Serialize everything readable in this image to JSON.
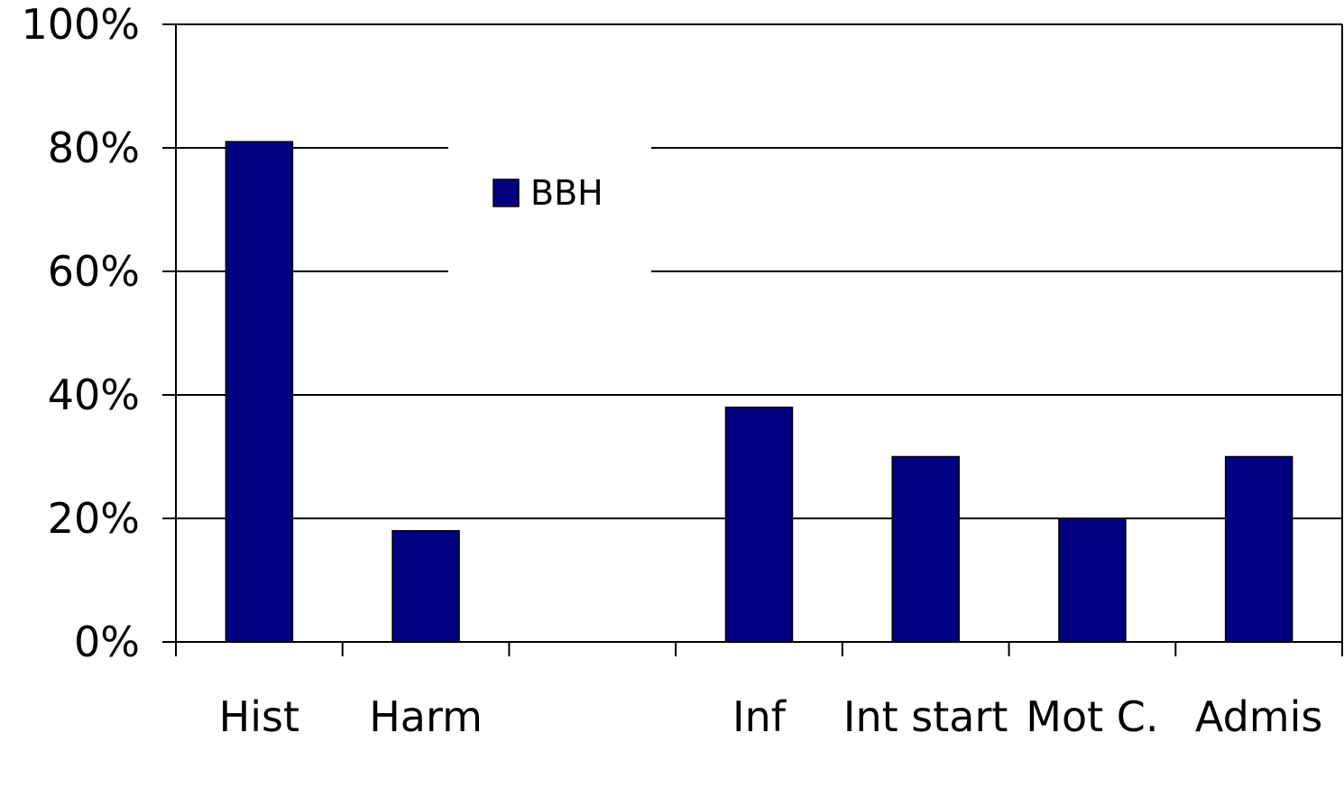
{
  "chart_data": {
    "type": "bar",
    "categories": [
      "Hist",
      "Harm",
      null,
      "Inf",
      "Int start",
      "Mot C.",
      "Admis"
    ],
    "series": [
      {
        "name": "BBH",
        "color": "#000080",
        "values": [
          81,
          18,
          null,
          38,
          30,
          20,
          30
        ]
      }
    ],
    "ylim": [
      0,
      100
    ],
    "yticks": [
      {
        "value": 0,
        "label": "0%"
      },
      {
        "value": 20,
        "label": "20%"
      },
      {
        "value": 40,
        "label": "40%"
      },
      {
        "value": 60,
        "label": "60%"
      },
      {
        "value": 80,
        "label": "80%"
      },
      {
        "value": 100,
        "label": "100%"
      }
    ],
    "grid": true
  }
}
